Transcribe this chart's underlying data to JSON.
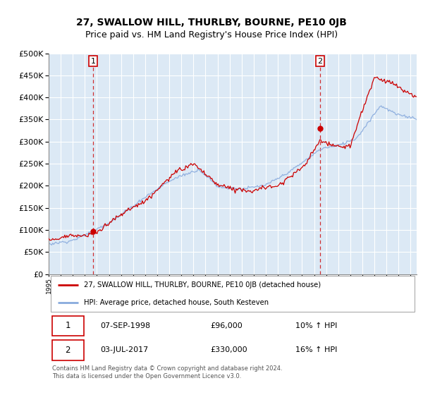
{
  "title": "27, SWALLOW HILL, THURLBY, BOURNE, PE10 0JB",
  "subtitle": "Price paid vs. HM Land Registry's House Price Index (HPI)",
  "ylim": [
    0,
    500000
  ],
  "yticks": [
    0,
    50000,
    100000,
    150000,
    200000,
    250000,
    300000,
    350000,
    400000,
    450000,
    500000
  ],
  "plot_bg_color": "#dce9f5",
  "grid_color": "#ffffff",
  "title_fontsize": 10,
  "subtitle_fontsize": 9,
  "sale1_x_year": 1998.69,
  "sale1_y": 96000,
  "sale2_x_year": 2017.5,
  "sale2_y": 330000,
  "line_property_color": "#cc0000",
  "line_hpi_color": "#88aadd",
  "legend_line1": "27, SWALLOW HILL, THURLBY, BOURNE, PE10 0JB (detached house)",
  "legend_line2": "HPI: Average price, detached house, South Kesteven",
  "sale1_date": "07-SEP-1998",
  "sale1_price": "£96,000",
  "sale1_hpi": "10% ↑ HPI",
  "sale2_date": "03-JUL-2017",
  "sale2_price": "£330,000",
  "sale2_hpi": "16% ↑ HPI",
  "footer": "Contains HM Land Registry data © Crown copyright and database right 2024.\nThis data is licensed under the Open Government Licence v3.0.",
  "xmin": 1995.0,
  "xmax": 2025.5
}
